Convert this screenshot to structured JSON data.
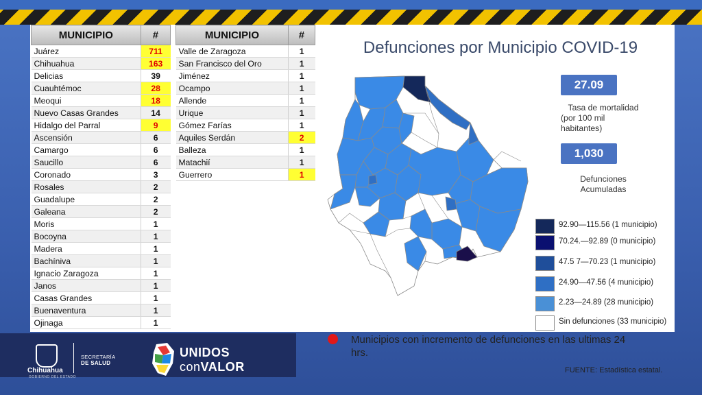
{
  "tables": {
    "left": {
      "header": [
        "MUNICIPIO",
        "#"
      ],
      "rows": [
        {
          "name": "Juárez",
          "value": "711",
          "highlight": true
        },
        {
          "name": "Chihuahua",
          "value": "163",
          "highlight": true
        },
        {
          "name": "Delicias",
          "value": "39",
          "highlight": false
        },
        {
          "name": "Cuauhtémoc",
          "value": "28",
          "highlight": true
        },
        {
          "name": "Meoqui",
          "value": "18",
          "highlight": true
        },
        {
          "name": "Nuevo Casas Grandes",
          "value": "14",
          "highlight": false
        },
        {
          "name": "Hidalgo del Parral",
          "value": "9",
          "highlight": true
        },
        {
          "name": "Ascensión",
          "value": "6",
          "highlight": false
        },
        {
          "name": "Camargo",
          "value": "6",
          "highlight": false
        },
        {
          "name": "Saucillo",
          "value": "6",
          "highlight": false
        },
        {
          "name": "Coronado",
          "value": "3",
          "highlight": false
        },
        {
          "name": "Rosales",
          "value": "2",
          "highlight": false
        },
        {
          "name": "Guadalupe",
          "value": "2",
          "highlight": false
        },
        {
          "name": "Galeana",
          "value": "2",
          "highlight": false
        },
        {
          "name": "Moris",
          "value": "1",
          "highlight": false
        },
        {
          "name": "Bocoyna",
          "value": "1",
          "highlight": false
        },
        {
          "name": "Madera",
          "value": "1",
          "highlight": false
        },
        {
          "name": "Bachíniva",
          "value": "1",
          "highlight": false
        },
        {
          "name": "Ignacio Zaragoza",
          "value": "1",
          "highlight": false
        },
        {
          "name": "Janos",
          "value": "1",
          "highlight": false
        },
        {
          "name": "Casas Grandes",
          "value": "1",
          "highlight": false
        },
        {
          "name": "Buenaventura",
          "value": "1",
          "highlight": false
        },
        {
          "name": "Ojinaga",
          "value": "1",
          "highlight": false
        }
      ]
    },
    "right": {
      "header": [
        "MUNICIPIO",
        "#"
      ],
      "rows": [
        {
          "name": "Valle de Zaragoza",
          "value": "1",
          "highlight": false
        },
        {
          "name": "San Francisco del Oro",
          "value": "1",
          "highlight": false
        },
        {
          "name": "Jiménez",
          "value": "1",
          "highlight": false
        },
        {
          "name": "Ocampo",
          "value": "1",
          "highlight": false
        },
        {
          "name": "Allende",
          "value": "1",
          "highlight": false
        },
        {
          "name": "Urique",
          "value": "1",
          "highlight": false
        },
        {
          "name": "Gómez Farías",
          "value": "1",
          "highlight": false
        },
        {
          "name": "Aquiles Serdán",
          "value": "2",
          "highlight": true
        },
        {
          "name": "Balleza",
          "value": "1",
          "highlight": false
        },
        {
          "name": "Matachií",
          "value": "1",
          "highlight": false
        },
        {
          "name": "Guerrero",
          "value": "1",
          "highlight": true
        }
      ]
    }
  },
  "title": "Defunciones por Municipio COVID-19",
  "stats": {
    "rate_value": "27.09",
    "rate_label_1": "Tasa de mortalidad",
    "rate_label_2": "(por 100 mil",
    "rate_label_3": "habitantes)",
    "total_value": "1,030",
    "total_label_1": "Defunciones",
    "total_label_2": "Acumuladas"
  },
  "legend": [
    {
      "label": "92.90—115.56 (1 municipio)",
      "color": "#14285a"
    },
    {
      "label": "70.24.—92.89 (0 municipio)",
      "color": "#0a1070"
    },
    {
      "label": "47.5 7—70.23 (1 municipio)",
      "color": "#1f4e9a"
    },
    {
      "label": "24.90—47.56 (4 municipio)",
      "color": "#2f6fc4"
    },
    {
      "label": "2.23—24.89 (28 municipio)",
      "color": "#4a90d6"
    },
    {
      "label": "Sin defunciones (33 municipio)",
      "color": "#ffffff"
    }
  ],
  "map_colors": {
    "light_blue": "#3a8ae6",
    "medium_blue": "#2f6fc4",
    "dark_blue": "#1d3a8c",
    "darkest": "#1a0f4a",
    "none": "#ffffff",
    "border": "#8a8a8a"
  },
  "note": "Municipios  con incremento de defunciones  en las ultimas 24 hrs.",
  "source": "FUENTE: Estadística estatal.",
  "footer": {
    "state": "Chihuahua",
    "state_sub": "GOBIERNO DEL ESTADO",
    "secretaria_1": "SECRETARÍA",
    "secretaria_2": "DE SALUD",
    "campaign_1": "UNIDOS",
    "campaign_2a": "con",
    "campaign_2b": "VALOR"
  }
}
